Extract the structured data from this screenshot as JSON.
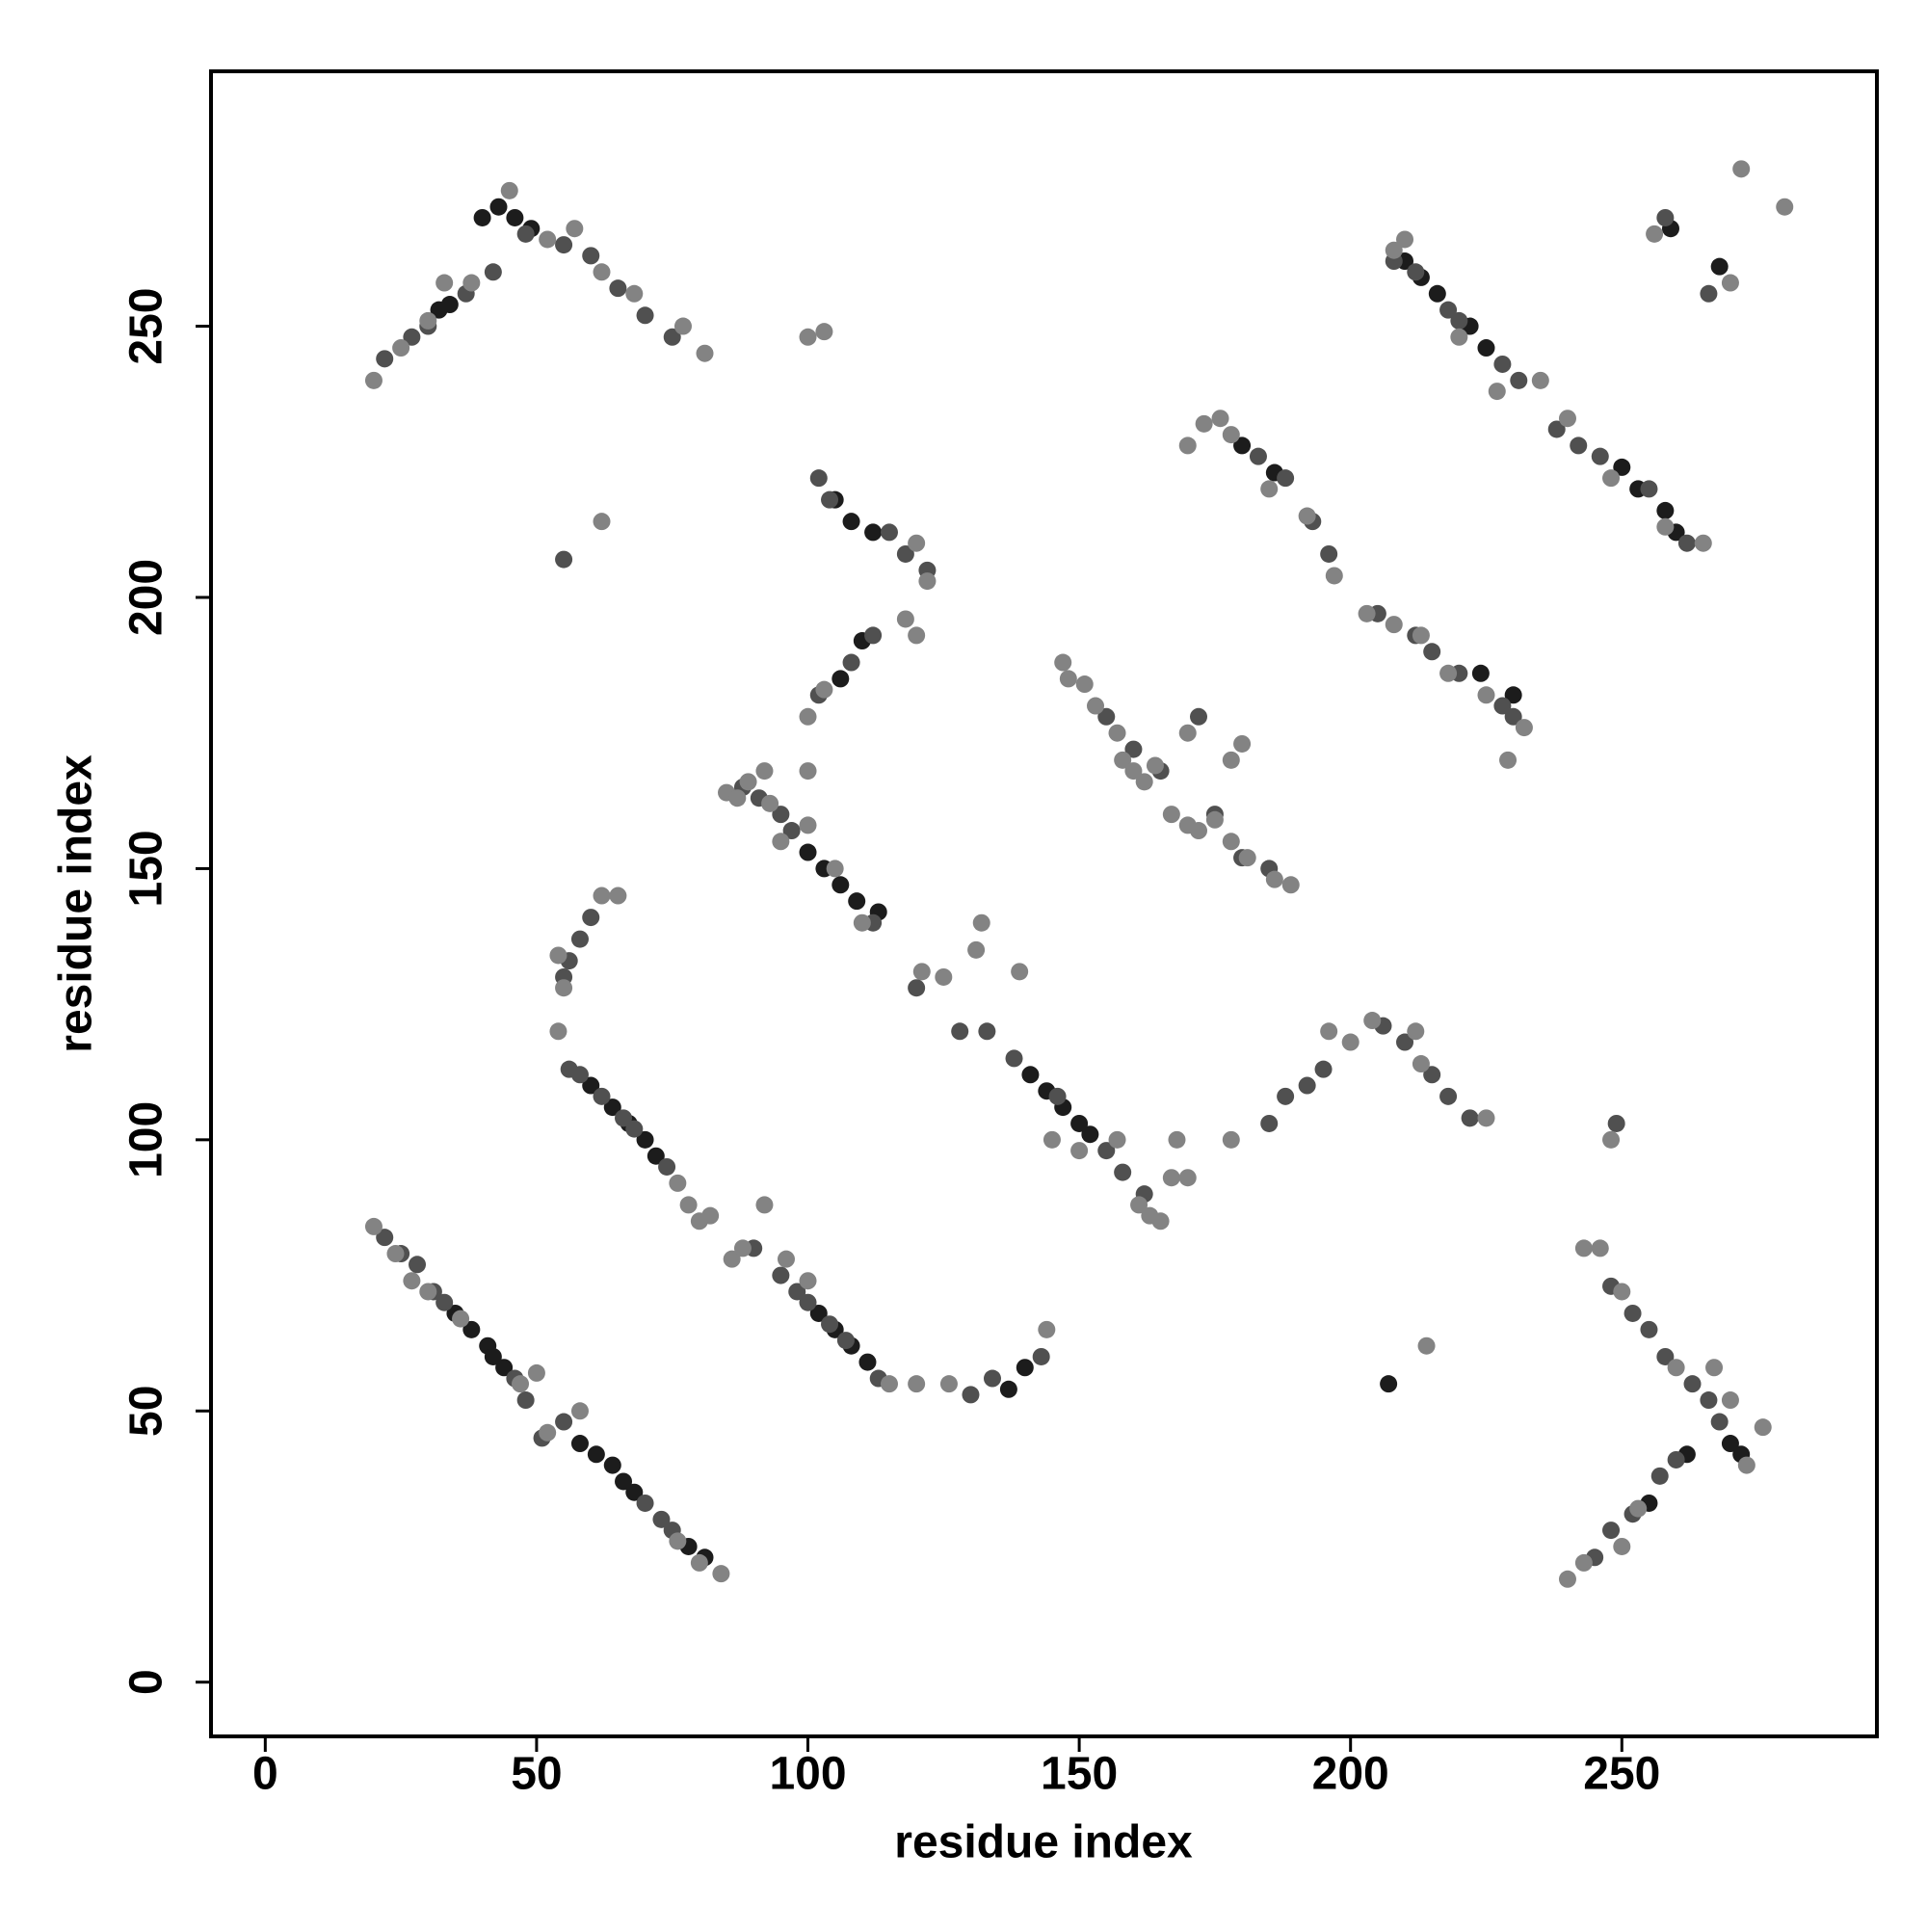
{
  "chart_data": {
    "type": "scatter",
    "xlabel": "residue index",
    "ylabel": "residue index",
    "xlim": [
      -10,
      297
    ],
    "ylim": [
      -10,
      297
    ],
    "xticks": [
      0,
      50,
      100,
      150,
      200,
      250
    ],
    "yticks": [
      0,
      50,
      100,
      150,
      200,
      250
    ],
    "grid": false,
    "series": [
      {
        "color": "#1c1c1c",
        "x": [
          35,
          38,
          41,
          42,
          44,
          58,
          61,
          64,
          66,
          68,
          78,
          81,
          60,
          64,
          67,
          70,
          72,
          102,
          105,
          108,
          111,
          100,
          103,
          106,
          109,
          113,
          141,
          144,
          147,
          150,
          152,
          210,
          213,
          216,
          222,
          225,
          250,
          253,
          258,
          260,
          40,
          43,
          46,
          49,
          32,
          34,
          270,
          272,
          262,
          255,
          106,
          110,
          105,
          108,
          112,
          137,
          140,
          259,
          268,
          207,
          180,
          186,
          224,
          230
        ],
        "y": [
          68,
          65,
          62,
          60,
          58,
          44,
          42,
          40,
          37,
          35,
          25,
          23,
          110,
          106,
          103,
          100,
          97,
          68,
          65,
          62,
          59,
          153,
          150,
          147,
          144,
          142,
          112,
          109,
          106,
          103,
          101,
          262,
          259,
          256,
          250,
          246,
          224,
          220,
          216,
          212,
          270,
          272,
          270,
          268,
          253,
          254,
          44,
          42,
          42,
          33,
          185,
          192,
          218,
          214,
          212,
          54,
          58,
          268,
          261,
          55,
          228,
          223,
          186,
          182
        ]
      },
      {
        "color": "#505050",
        "x": [
          22,
          25,
          28,
          31,
          33,
          46,
          48,
          51,
          55,
          70,
          73,
          75,
          56,
          58,
          62,
          66,
          68,
          74,
          90,
          95,
          98,
          100,
          104,
          107,
          113,
          56,
          58,
          60,
          55,
          88,
          91,
          95,
          97,
          112,
          120,
          128,
          133,
          138,
          146,
          155,
          158,
          162,
          130,
          134,
          143,
          102,
          108,
          112,
          115,
          118,
          122,
          102,
          104,
          155,
          160,
          165,
          175,
          180,
          185,
          183,
          188,
          193,
          196,
          205,
          212,
          215,
          220,
          228,
          230,
          208,
          212,
          218,
          220,
          228,
          231,
          238,
          242,
          246,
          255,
          262,
          22,
          27,
          30,
          37,
          42,
          48,
          55,
          60,
          65,
          70,
          75,
          172,
          185,
          188,
          192,
          195,
          206,
          210,
          215,
          218,
          222,
          245,
          248,
          252,
          257,
          260,
          248,
          252,
          255,
          258,
          263,
          266,
          268,
          258,
          266,
          55,
          249
        ],
        "y": [
          82,
          79,
          77,
          72,
          70,
          56,
          52,
          45,
          48,
          33,
          30,
          28,
          113,
          112,
          108,
          104,
          102,
          95,
          80,
          75,
          72,
          70,
          66,
          63,
          56,
          133,
          137,
          141,
          130,
          165,
          163,
          160,
          157,
          140,
          128,
          120,
          120,
          115,
          108,
          98,
          94,
          90,
          53,
          56,
          60,
          182,
          188,
          193,
          212,
          208,
          205,
          222,
          218,
          178,
          172,
          168,
          160,
          152,
          150,
          226,
          222,
          214,
          208,
          197,
          193,
          190,
          186,
          180,
          178,
          262,
          260,
          253,
          251,
          243,
          240,
          231,
          228,
          226,
          220,
          210,
          244,
          248,
          250,
          256,
          260,
          267,
          265,
          263,
          257,
          252,
          248,
          178,
          103,
          108,
          110,
          113,
          121,
          118,
          112,
          108,
          104,
          23,
          28,
          31,
          38,
          41,
          73,
          68,
          65,
          60,
          55,
          52,
          48,
          270,
          256,
          207,
          103
        ]
      },
      {
        "color": "#838383",
        "x": [
          20,
          24,
          27,
          30,
          36,
          47,
          50,
          52,
          58,
          76,
          80,
          84,
          54,
          76,
          78,
          80,
          82,
          86,
          88,
          92,
          96,
          100,
          115,
          120,
          54,
          55,
          62,
          65,
          85,
          87,
          89,
          92,
          93,
          95,
          100,
          105,
          110,
          121,
          125,
          131,
          132,
          139,
          145,
          150,
          157,
          161,
          163,
          165,
          167,
          168,
          170,
          126,
          144,
          100,
          103,
          118,
          120,
          120,
          122,
          100,
          147,
          148,
          151,
          153,
          157,
          158,
          160,
          162,
          164,
          167,
          170,
          172,
          175,
          178,
          181,
          186,
          189,
          170,
          178,
          180,
          170,
          173,
          176,
          178,
          185,
          192,
          197,
          203,
          208,
          213,
          218,
          225,
          232,
          229,
          208,
          210,
          220,
          227,
          235,
          240,
          248,
          258,
          265,
          20,
          25,
          30,
          33,
          38,
          45,
          52,
          57,
          62,
          68,
          77,
          81,
          178,
          196,
          200,
          204,
          212,
          213,
          225,
          240,
          243,
          250,
          253,
          243,
          246,
          250,
          260,
          267,
          270,
          276,
          273,
          256,
          270,
          272,
          280,
          62,
          100,
          103,
          214,
          248
        ],
        "y": [
          84,
          79,
          74,
          72,
          67,
          55,
          57,
          46,
          50,
          26,
          22,
          20,
          120,
          92,
          88,
          85,
          86,
          78,
          80,
          88,
          78,
          74,
          55,
          55,
          134,
          128,
          145,
          145,
          164,
          163,
          166,
          168,
          162,
          155,
          158,
          150,
          140,
          131,
          130,
          135,
          140,
          131,
          100,
          98,
          100,
          88,
          86,
          85,
          93,
          100,
          93,
          55,
          65,
          178,
          183,
          196,
          193,
          210,
          203,
          168,
          188,
          185,
          184,
          180,
          175,
          170,
          168,
          166,
          169,
          160,
          158,
          157,
          159,
          155,
          152,
          148,
          147,
          175,
          170,
          173,
          228,
          232,
          233,
          230,
          220,
          215,
          204,
          197,
          195,
          193,
          186,
          182,
          176,
          170,
          264,
          266,
          248,
          238,
          240,
          233,
          222,
          213,
          210,
          240,
          246,
          251,
          258,
          258,
          275,
          266,
          268,
          260,
          256,
          250,
          245,
          100,
          120,
          118,
          122,
          120,
          114,
          104,
          19,
          22,
          25,
          32,
          80,
          80,
          72,
          58,
          58,
          52,
          47,
          40,
          267,
          258,
          279,
          272,
          214,
          248,
          249,
          62,
          100
        ]
      }
    ]
  }
}
